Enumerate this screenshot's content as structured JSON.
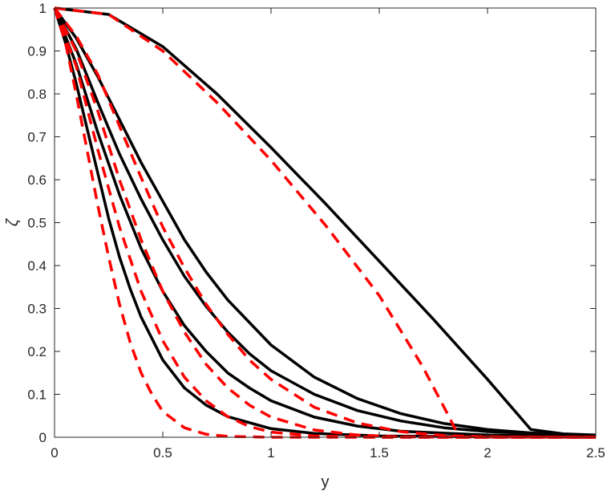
{
  "chart_data": {
    "type": "line",
    "title": "",
    "xlabel": "y",
    "ylabel": "ζ",
    "xlim": [
      0,
      2.5
    ],
    "ylim": [
      0,
      1
    ],
    "xticks": [
      0,
      0.5,
      1,
      1.5,
      2,
      2.5
    ],
    "xtick_labels": [
      "0",
      "0.5",
      "1",
      "1.5",
      "2",
      "2.5"
    ],
    "yticks": [
      0,
      0.1,
      0.2,
      0.3,
      0.4,
      0.5,
      0.6,
      0.7,
      0.8,
      0.9,
      1
    ],
    "ytick_labels": [
      "0",
      "0.1",
      "0.2",
      "0.3",
      "0.4",
      "0.5",
      "0.6",
      "0.7",
      "0.8",
      "0.9",
      "1"
    ],
    "grid": false,
    "legend": "none",
    "series": [
      {
        "color": "#000000",
        "dash": "solid",
        "x": [
          0,
          0.25,
          0.5,
          0.75,
          1.0,
          1.25,
          1.5,
          1.75,
          2.0,
          2.2,
          2.35,
          2.5
        ],
        "y": [
          1.0,
          0.985,
          0.91,
          0.8,
          0.675,
          0.545,
          0.41,
          0.275,
          0.135,
          0.018,
          0.008,
          0.005
        ]
      },
      {
        "color": "#000000",
        "dash": "solid",
        "x": [
          0,
          0.1,
          0.2,
          0.3,
          0.4,
          0.5,
          0.6,
          0.7,
          0.8,
          1.0,
          1.2,
          1.4,
          1.6,
          1.8,
          2.0,
          2.2,
          2.5
        ],
        "y": [
          1.0,
          0.93,
          0.84,
          0.74,
          0.64,
          0.55,
          0.46,
          0.385,
          0.32,
          0.215,
          0.14,
          0.09,
          0.055,
          0.032,
          0.018,
          0.01,
          0.004
        ]
      },
      {
        "color": "#000000",
        "dash": "solid",
        "x": [
          0,
          0.1,
          0.2,
          0.3,
          0.4,
          0.5,
          0.6,
          0.7,
          0.8,
          0.9,
          1.0,
          1.2,
          1.4,
          1.6,
          1.8,
          2.0,
          2.5
        ],
        "y": [
          1.0,
          0.905,
          0.78,
          0.66,
          0.555,
          0.46,
          0.375,
          0.305,
          0.245,
          0.195,
          0.155,
          0.1,
          0.062,
          0.038,
          0.022,
          0.013,
          0.003
        ]
      },
      {
        "color": "#000000",
        "dash": "solid",
        "x": [
          0,
          0.1,
          0.2,
          0.3,
          0.4,
          0.5,
          0.6,
          0.7,
          0.8,
          0.9,
          1.0,
          1.2,
          1.4,
          1.6,
          2.0,
          2.5
        ],
        "y": [
          1.0,
          0.87,
          0.71,
          0.565,
          0.44,
          0.34,
          0.26,
          0.2,
          0.15,
          0.115,
          0.085,
          0.047,
          0.026,
          0.014,
          0.005,
          0.002
        ]
      },
      {
        "color": "#000000",
        "dash": "solid",
        "x": [
          0,
          0.05,
          0.1,
          0.15,
          0.2,
          0.25,
          0.3,
          0.35,
          0.4,
          0.5,
          0.6,
          0.7,
          0.8,
          1.0,
          1.2,
          1.5,
          2.0,
          2.5
        ],
        "y": [
          1.0,
          0.92,
          0.825,
          0.72,
          0.615,
          0.51,
          0.42,
          0.345,
          0.28,
          0.18,
          0.115,
          0.075,
          0.048,
          0.02,
          0.009,
          0.003,
          0.001,
          0.0
        ]
      },
      {
        "color": "#ff0000",
        "dash": "dashed",
        "x": [
          0,
          0.25,
          0.5,
          0.75,
          1.0,
          1.25,
          1.5,
          1.7,
          1.82,
          1.87,
          2.0,
          2.5
        ],
        "y": [
          1.0,
          0.985,
          0.9,
          0.78,
          0.645,
          0.495,
          0.33,
          0.165,
          0.05,
          0.0,
          0.0,
          0.0
        ]
      },
      {
        "color": "#ff0000",
        "dash": "dashed",
        "x": [
          0,
          0.1,
          0.2,
          0.3,
          0.4,
          0.5,
          0.6,
          0.7,
          0.8,
          0.9,
          1.0,
          1.2,
          1.4,
          1.6,
          1.8,
          2.0,
          2.5
        ],
        "y": [
          1.0,
          0.935,
          0.845,
          0.725,
          0.605,
          0.49,
          0.395,
          0.31,
          0.24,
          0.18,
          0.135,
          0.07,
          0.033,
          0.013,
          0.004,
          0.001,
          0.0
        ]
      },
      {
        "color": "#ff0000",
        "dash": "dashed",
        "x": [
          0,
          0.1,
          0.2,
          0.3,
          0.4,
          0.5,
          0.6,
          0.7,
          0.8,
          0.9,
          1.0,
          1.2,
          1.4,
          1.6,
          2.0,
          2.5
        ],
        "y": [
          1.0,
          0.9,
          0.76,
          0.6,
          0.46,
          0.34,
          0.245,
          0.17,
          0.115,
          0.075,
          0.047,
          0.017,
          0.005,
          0.001,
          0.0,
          0.0
        ]
      },
      {
        "color": "#ff0000",
        "dash": "dashed",
        "x": [
          0,
          0.1,
          0.2,
          0.3,
          0.4,
          0.5,
          0.6,
          0.7,
          0.8,
          0.9,
          1.0,
          1.2,
          1.5,
          2.0,
          2.5
        ],
        "y": [
          1.0,
          0.865,
          0.67,
          0.49,
          0.34,
          0.225,
          0.14,
          0.085,
          0.048,
          0.025,
          0.012,
          0.003,
          0.0,
          0.0,
          0.0
        ]
      },
      {
        "color": "#ff0000",
        "dash": "dashed",
        "x": [
          0,
          0.05,
          0.1,
          0.15,
          0.2,
          0.25,
          0.3,
          0.35,
          0.4,
          0.45,
          0.5,
          0.6,
          0.7,
          0.8,
          1.0,
          1.5,
          2.0,
          2.5
        ],
        "y": [
          1.0,
          0.92,
          0.8,
          0.67,
          0.54,
          0.42,
          0.31,
          0.22,
          0.15,
          0.1,
          0.06,
          0.022,
          0.007,
          0.002,
          0.0,
          0.0,
          0.0,
          0.0
        ]
      }
    ]
  }
}
